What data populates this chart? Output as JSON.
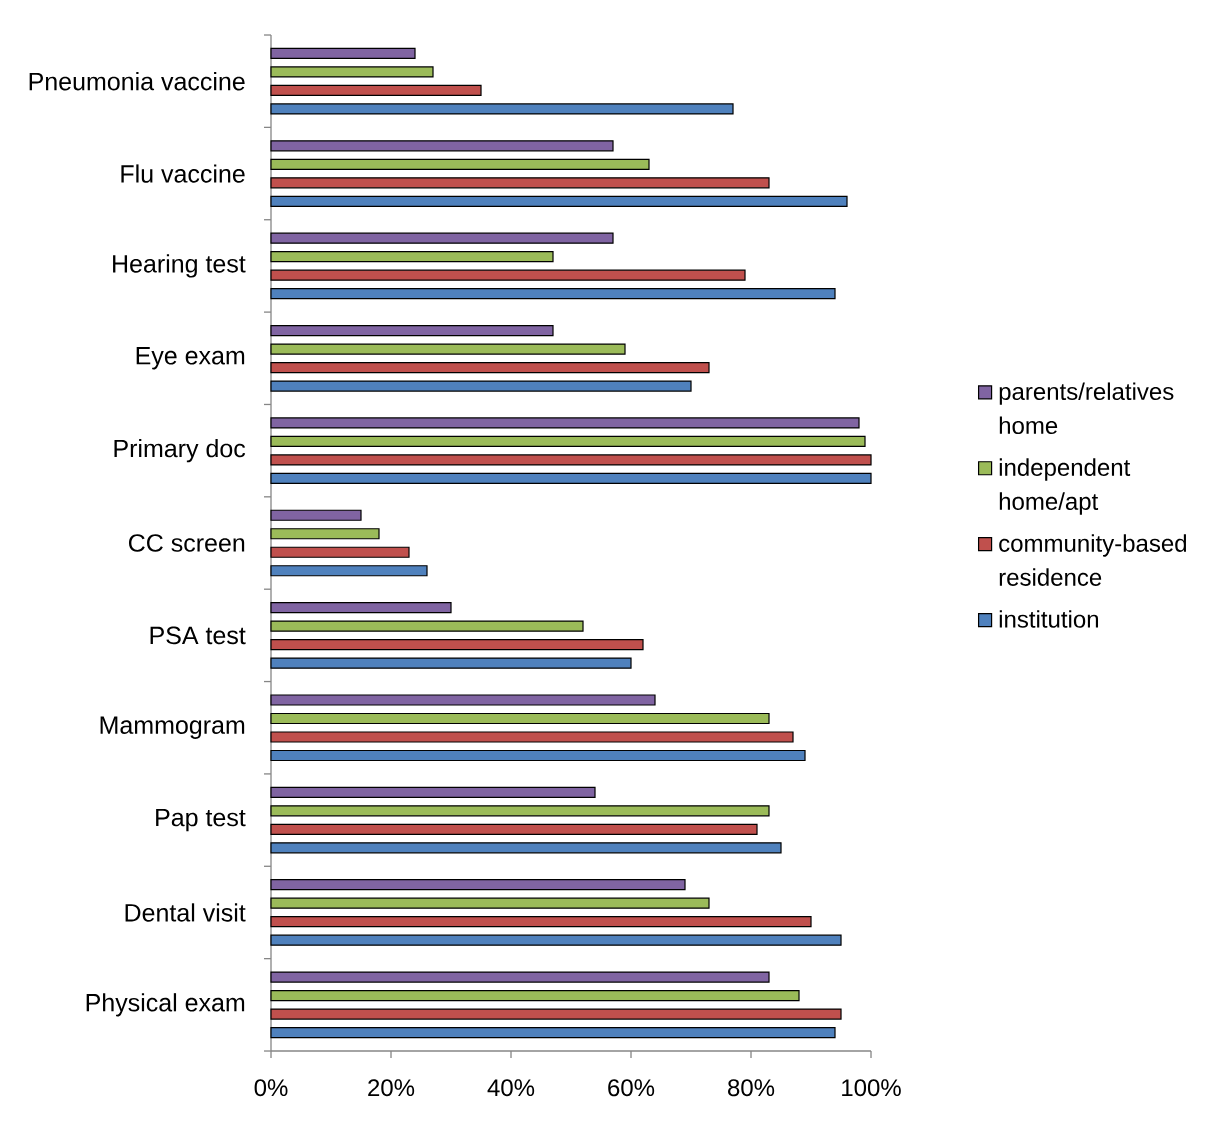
{
  "chart_data": {
    "type": "bar",
    "orientation": "horizontal",
    "categories": [
      "Pneumonia vaccine",
      "Flu vaccine",
      "Hearing test",
      "Eye exam",
      "Primary doc",
      "CC screen",
      "PSA test",
      "Mammogram",
      "Pap test",
      "Dental visit",
      "Physical exam"
    ],
    "series": [
      {
        "name": "parents/relatives home",
        "color": "#8064a2",
        "values": [
          24,
          57,
          57,
          47,
          98,
          15,
          30,
          64,
          54,
          69,
          83
        ]
      },
      {
        "name": "independent home/apt",
        "color": "#9bbb59",
        "values": [
          27,
          63,
          47,
          59,
          99,
          18,
          52,
          83,
          83,
          73,
          88
        ]
      },
      {
        "name": "community-based residence",
        "color": "#c0504d",
        "values": [
          35,
          83,
          79,
          73,
          100,
          23,
          62,
          87,
          81,
          90,
          95
        ]
      },
      {
        "name": "institution",
        "color": "#4f81bd",
        "values": [
          77,
          96,
          94,
          70,
          100,
          26,
          60,
          89,
          85,
          95,
          94
        ]
      }
    ],
    "xlim": [
      0,
      100
    ],
    "xticks": [
      {
        "value": 0,
        "label": "0%"
      },
      {
        "value": 20,
        "label": "20%"
      },
      {
        "value": 40,
        "label": "40%"
      },
      {
        "value": 60,
        "label": "60%"
      },
      {
        "value": 80,
        "label": "80%"
      },
      {
        "value": 100,
        "label": "100%"
      }
    ],
    "legend": "right"
  }
}
